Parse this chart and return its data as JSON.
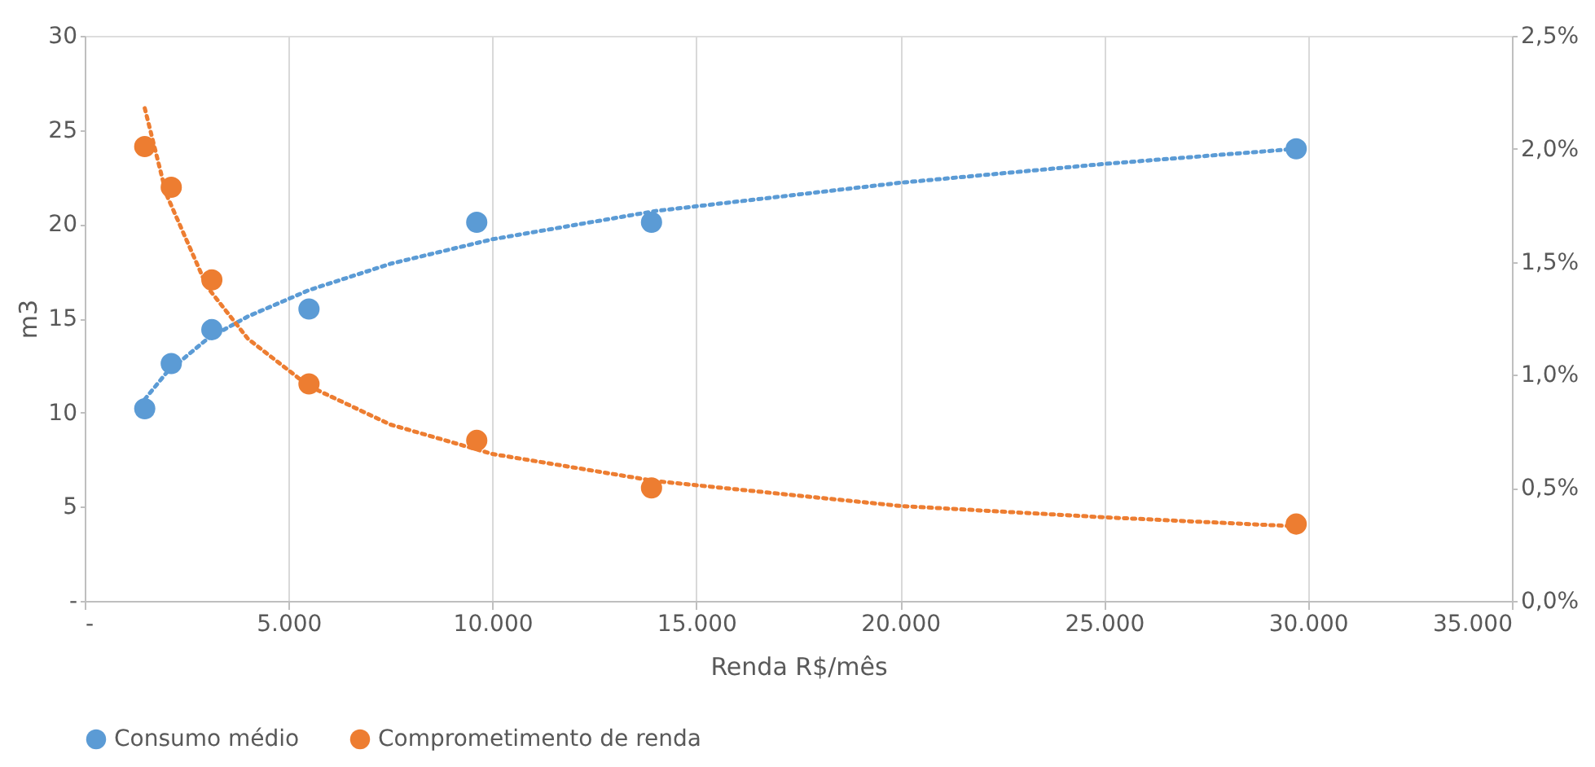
{
  "chart_data": {
    "type": "scatter",
    "xlabel": "Renda R$/mês",
    "ylabel": "m3",
    "xlim": [
      0,
      35000
    ],
    "xticks": [
      {
        "value": 0,
        "label": "-"
      },
      {
        "value": 5000,
        "label": "5.000"
      },
      {
        "value": 10000,
        "label": "10.000"
      },
      {
        "value": 15000,
        "label": "15.000"
      },
      {
        "value": 20000,
        "label": "20.000"
      },
      {
        "value": 25000,
        "label": "25.000"
      },
      {
        "value": 30000,
        "label": "30.000"
      },
      {
        "value": 35000,
        "label": "35.000"
      }
    ],
    "ylim": [
      0,
      30
    ],
    "yticks": [
      {
        "value": 0,
        "label": "-"
      },
      5,
      10,
      15,
      20,
      25,
      30
    ],
    "y2lim": [
      0,
      2.5
    ],
    "y2ticks": [
      {
        "value": 0,
        "label": "0,0%"
      },
      {
        "value": 0.5,
        "label": "0,5%"
      },
      {
        "value": 1.0,
        "label": "1,0%"
      },
      {
        "value": 1.5,
        "label": "1,5%"
      },
      {
        "value": 2.0,
        "label": "2,0%"
      },
      {
        "value": 2.5,
        "label": "2,5%"
      }
    ],
    "grid": "x",
    "legend": "bottom",
    "marker": "circle",
    "series": [
      {
        "name": "Consumo médio",
        "color": "#5b9bd5",
        "x": [
          1472,
          2122,
          3118,
          5500,
          9614,
          13900,
          29710
        ],
        "values": [
          10.2,
          12.6,
          14.4,
          15.5,
          20.1,
          20.1,
          24.0
        ]
      },
      {
        "name": "Comprometimento de renda",
        "color": "#ed7d31",
        "axis": "y2",
        "x": [
          1472,
          2122,
          3118,
          5500,
          9614,
          13900,
          29710
        ],
        "values": [
          2.01,
          1.83,
          1.42,
          0.96,
          0.71,
          0.5,
          0.34
        ]
      },
      {
        "type": "line",
        "marker": "none",
        "line_style": "dotted",
        "color": "#5b9bd5",
        "x": [
          1472,
          2000,
          3000,
          4000,
          5500,
          7500,
          10000,
          14000,
          20000,
          25000,
          29710
        ],
        "values": [
          10.7,
          12.1,
          13.9,
          15.1,
          16.5,
          17.9,
          19.2,
          20.7,
          22.2,
          23.2,
          24.0
        ]
      },
      {
        "type": "line",
        "marker": "none",
        "line_style": "dotted",
        "color": "#ed7d31",
        "axis": "y2",
        "x": [
          1472,
          2000,
          3000,
          4000,
          5500,
          7500,
          10000,
          14000,
          20000,
          25000,
          29710
        ],
        "values": [
          2.18,
          1.8,
          1.39,
          1.16,
          0.95,
          0.78,
          0.65,
          0.53,
          0.42,
          0.37,
          0.33
        ]
      }
    ]
  }
}
